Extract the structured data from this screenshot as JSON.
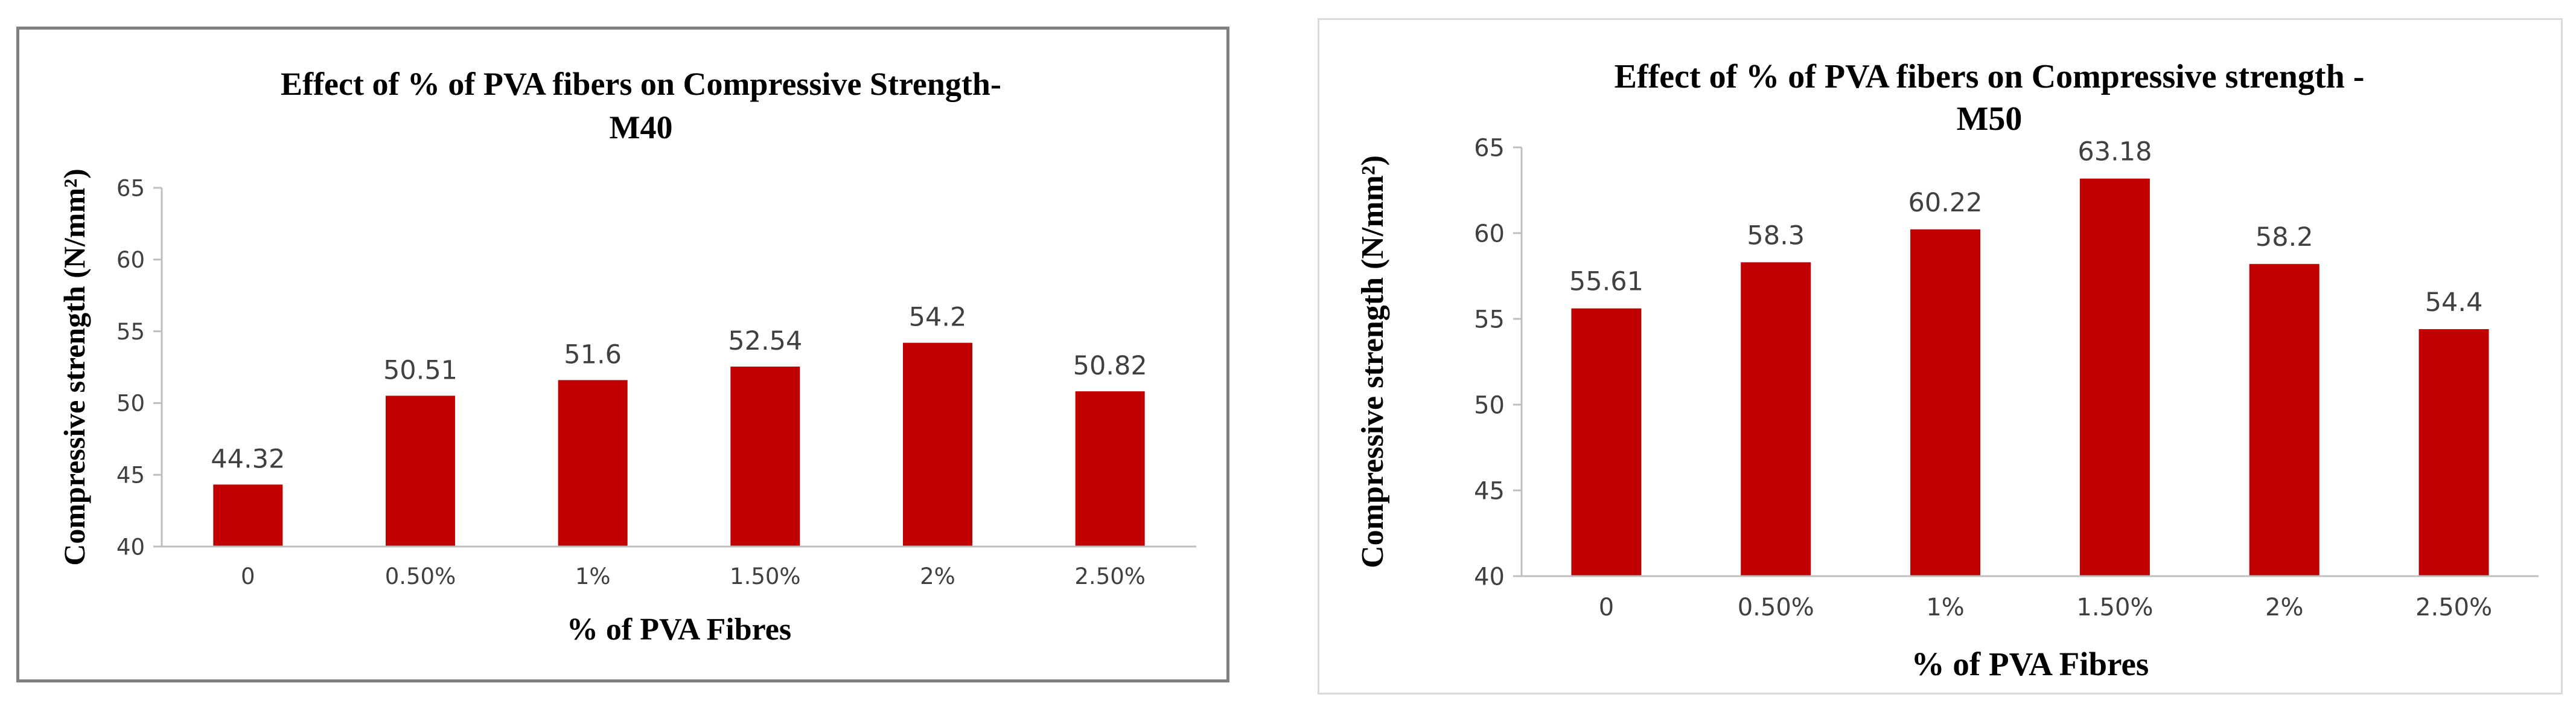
{
  "bar_color": "#c00000",
  "axis_color": "#bfbfbf",
  "chart_data": [
    {
      "type": "bar",
      "title_lines": [
        "Effect of % of PVA fibers on Compressive Strength-",
        "M40"
      ],
      "xlabel": "% of PVA Fibres",
      "ylabel": "Compressive strength (N/mm²)",
      "categories": [
        "0",
        "0.50%",
        "1%",
        "1.50%",
        "2%",
        "2.50%"
      ],
      "values": [
        44.32,
        50.51,
        51.6,
        52.54,
        54.2,
        50.82
      ],
      "data_labels": [
        "44.32",
        "50.51",
        "51.6",
        "52.54",
        "54.2",
        "50.82"
      ],
      "ylim": [
        40,
        65
      ],
      "yticks": [
        40,
        45,
        50,
        55,
        60,
        65
      ],
      "ytick_labels": [
        "40",
        "45",
        "50",
        "55",
        "60",
        "65"
      ],
      "grid": false,
      "legend": "none"
    },
    {
      "type": "bar",
      "title_lines": [
        "Effect of % of PVA fibers on Compressive strength -",
        "M50"
      ],
      "xlabel": "% of PVA Fibres",
      "ylabel": "Compressive strength (N/mm²)",
      "categories": [
        "0",
        "0.50%",
        "1%",
        "1.50%",
        "2%",
        "2.50%"
      ],
      "values": [
        55.61,
        58.3,
        60.22,
        63.18,
        58.2,
        54.4
      ],
      "data_labels": [
        "55.61",
        "58.3",
        "60.22",
        "63.18",
        "58.2",
        "54.4"
      ],
      "ylim": [
        40,
        65
      ],
      "yticks": [
        40,
        45,
        50,
        55,
        60,
        65
      ],
      "ytick_labels": [
        "40",
        "45",
        "50",
        "55",
        "60",
        "65"
      ],
      "grid": false,
      "legend": "none"
    }
  ]
}
